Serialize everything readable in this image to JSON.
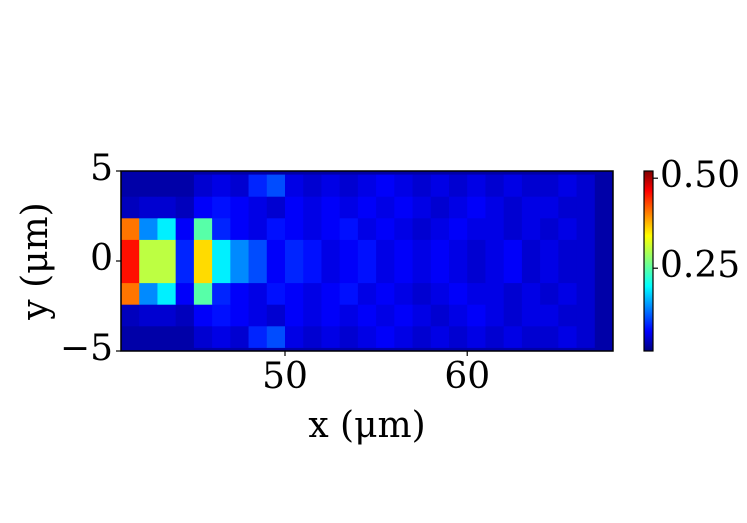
{
  "chart_data": {
    "type": "heatmap",
    "xlabel": "x (μm)",
    "ylabel": "y (μm)",
    "xlim": [
      41,
      68
    ],
    "ylim": [
      -5,
      5
    ],
    "xticks": [
      50,
      60
    ],
    "yticks": [
      {
        "value": -5,
        "label": "−5"
      },
      0,
      5
    ],
    "colormap": "jet",
    "clim": [
      0.02,
      0.52
    ],
    "cticks": [
      {
        "value": 0.5,
        "label": "0.50"
      },
      0.25
    ],
    "x": [
      41.5,
      42.5,
      43.5,
      44.5,
      45.5,
      46.5,
      47.5,
      48.5,
      49.5,
      50.5,
      51.5,
      52.5,
      53.5,
      54.5,
      55.5,
      56.5,
      57.5,
      58.5,
      59.5,
      60.5,
      61.5,
      62.5,
      63.5,
      64.5,
      65.5,
      66.5,
      67.5
    ],
    "y": [
      -4.2,
      -3.0,
      -1.8,
      -0.6,
      0.6,
      1.8,
      3.0,
      4.2
    ],
    "z": [
      [
        0.04,
        0.04,
        0.04,
        0.04,
        0.06,
        0.07,
        0.06,
        0.1,
        0.12,
        0.07,
        0.06,
        0.07,
        0.06,
        0.07,
        0.08,
        0.07,
        0.06,
        0.07,
        0.06,
        0.07,
        0.06,
        0.07,
        0.06,
        0.06,
        0.07,
        0.06,
        0.04
      ],
      [
        0.05,
        0.06,
        0.06,
        0.05,
        0.08,
        0.09,
        0.08,
        0.07,
        0.06,
        0.08,
        0.07,
        0.08,
        0.07,
        0.08,
        0.07,
        0.08,
        0.07,
        0.06,
        0.07,
        0.08,
        0.07,
        0.06,
        0.07,
        0.07,
        0.06,
        0.06,
        0.04
      ],
      [
        0.4,
        0.15,
        0.2,
        0.08,
        0.25,
        0.1,
        0.08,
        0.07,
        0.09,
        0.08,
        0.07,
        0.08,
        0.09,
        0.07,
        0.08,
        0.07,
        0.06,
        0.07,
        0.08,
        0.07,
        0.07,
        0.06,
        0.07,
        0.06,
        0.07,
        0.06,
        0.04
      ],
      [
        0.45,
        0.3,
        0.3,
        0.1,
        0.35,
        0.2,
        0.15,
        0.12,
        0.08,
        0.1,
        0.09,
        0.07,
        0.08,
        0.09,
        0.07,
        0.08,
        0.07,
        0.08,
        0.07,
        0.06,
        0.07,
        0.08,
        0.06,
        0.07,
        0.06,
        0.06,
        0.04
      ],
      [
        0.45,
        0.3,
        0.3,
        0.1,
        0.35,
        0.2,
        0.15,
        0.12,
        0.08,
        0.1,
        0.09,
        0.07,
        0.08,
        0.09,
        0.07,
        0.08,
        0.07,
        0.08,
        0.07,
        0.06,
        0.07,
        0.08,
        0.06,
        0.07,
        0.06,
        0.06,
        0.04
      ],
      [
        0.4,
        0.15,
        0.2,
        0.08,
        0.25,
        0.1,
        0.08,
        0.07,
        0.09,
        0.08,
        0.07,
        0.08,
        0.09,
        0.07,
        0.08,
        0.07,
        0.06,
        0.07,
        0.08,
        0.07,
        0.07,
        0.06,
        0.07,
        0.06,
        0.07,
        0.06,
        0.04
      ],
      [
        0.05,
        0.06,
        0.06,
        0.05,
        0.08,
        0.09,
        0.08,
        0.07,
        0.06,
        0.08,
        0.07,
        0.08,
        0.07,
        0.08,
        0.07,
        0.08,
        0.07,
        0.06,
        0.07,
        0.08,
        0.07,
        0.06,
        0.07,
        0.07,
        0.06,
        0.06,
        0.04
      ],
      [
        0.04,
        0.04,
        0.04,
        0.04,
        0.06,
        0.07,
        0.06,
        0.1,
        0.12,
        0.07,
        0.06,
        0.07,
        0.06,
        0.07,
        0.08,
        0.07,
        0.06,
        0.07,
        0.06,
        0.07,
        0.06,
        0.07,
        0.06,
        0.06,
        0.07,
        0.06,
        0.04
      ]
    ]
  }
}
